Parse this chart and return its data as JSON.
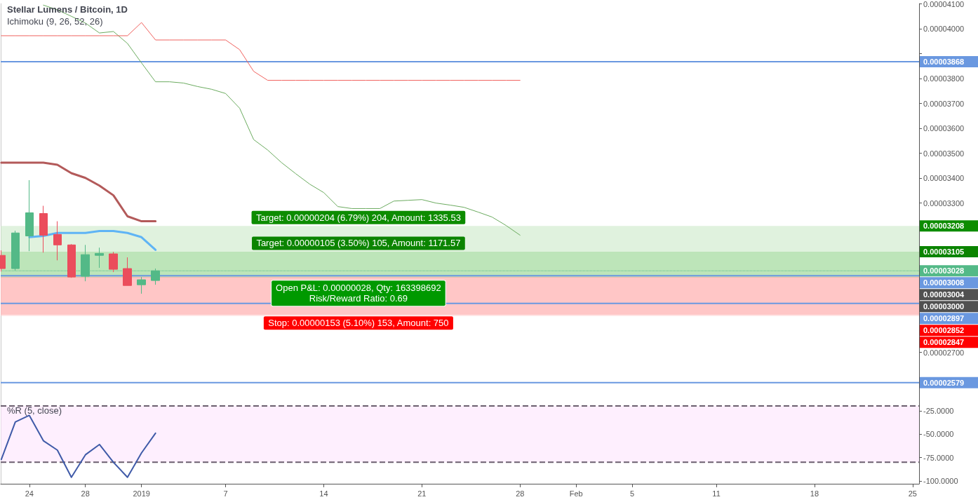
{
  "chart_data": [
    {
      "type": "candlestick",
      "title": "Stellar Lumens / Bitcoin, 1D",
      "subtitle": "Ichimoku (9, 26, 52, 26)",
      "xlim": [
        "2018-12-21T23:00",
        "2019-02-25T11:00"
      ],
      "ylim": [
        2.505e-05,
        4.101e-05
      ],
      "yticks": [
        {
          "value": 2.6e-05,
          "label": null
        },
        {
          "value": 2.7e-05,
          "label": "0.00002700"
        },
        {
          "value": 2.8e-05,
          "label": null
        },
        {
          "value": 2.9e-05,
          "label": null
        },
        {
          "value": 3e-05,
          "label": null
        },
        {
          "value": 3.1e-05,
          "label": null
        },
        {
          "value": 3.2e-05,
          "label": null
        },
        {
          "value": 3.3e-05,
          "label": "0.00003300"
        },
        {
          "value": 3.4e-05,
          "label": "0.00003400"
        },
        {
          "value": 3.5e-05,
          "label": "0.00003500"
        },
        {
          "value": 3.6e-05,
          "label": "0.00003600"
        },
        {
          "value": 3.7e-05,
          "label": "0.00003700"
        },
        {
          "value": 3.8e-05,
          "label": "0.00003800"
        },
        {
          "value": 3.9e-05,
          "label": null
        },
        {
          "value": 4e-05,
          "label": "0.00004000"
        },
        {
          "value": 4.1e-05,
          "label": "0.00004100"
        }
      ],
      "tick_labels": "y",
      "marker": "none",
      "series": [
        {
          "x": [
            "2018-12-22",
            "2018-12-23",
            "2018-12-24",
            "2018-12-25",
            "2018-12-26",
            "2018-12-27",
            "2018-12-28",
            "2018-12-29",
            "2018-12-30",
            "2018-12-31",
            "2019-01-01",
            "2019-01-02"
          ],
          "ohlc": [
            [
              3.09e-05,
              3.11e-05,
              3.025e-05,
              3.037e-05
            ],
            [
              3.037e-05,
              3.189e-05,
              3.028e-05,
              3.18e-05
            ],
            [
              3.168e-05,
              3.392e-05,
              3.107e-05,
              3.261e-05
            ],
            [
              3.258e-05,
              3.289e-05,
              3.101e-05,
              3.171e-05
            ],
            [
              3.174e-05,
              3.227e-05,
              3.07e-05,
              3.132e-05
            ],
            [
              3.132e-05,
              3.135e-05,
              3e-05,
              3.003e-05
            ],
            [
              3.006e-05,
              3.132e-05,
              2.986e-05,
              3.093e-05
            ],
            [
              3.09e-05,
              3.121e-05,
              3.04e-05,
              3.098e-05
            ],
            [
              3.096e-05,
              3.104e-05,
              3.023e-05,
              3.034e-05
            ],
            [
              3.037e-05,
              3.082e-05,
              2.969e-05,
              2.969e-05
            ],
            [
              2.972e-05,
              3.003e-05,
              2.936e-05,
              2.992e-05
            ],
            [
              2.989e-05,
              3.037e-05,
              2.972e-05,
              3.028e-05
            ]
          ],
          "colors": [
            "#eb4d5c",
            "#53b987",
            "#53b987",
            "#eb4d5c",
            "#eb4d5c",
            "#eb4d5c",
            "#53b987",
            "#53b987",
            "#eb4d5c",
            "#eb4d5c",
            "#53b987",
            "#53b987"
          ]
        },
        {
          "type": "line",
          "color": "#b35a5a",
          "x": [
            "2018-12-22",
            "2018-12-23",
            "2018-12-24",
            "2018-12-25",
            "2018-12-26",
            "2018-12-27",
            "2018-12-28",
            "2018-12-29",
            "2018-12-30",
            "2018-12-31",
            "2019-01-01",
            "2019-01-02"
          ],
          "values": [
            3.462e-05,
            3.462e-05,
            3.462e-05,
            3.462e-05,
            3.454e-05,
            3.42e-05,
            3.401e-05,
            3.37e-05,
            3.331e-05,
            3.247e-05,
            3.227e-05,
            3.227e-05
          ]
        },
        {
          "type": "line",
          "color": "#5fb4f5",
          "x": [
            "2018-12-24",
            "2018-12-25",
            "2018-12-26",
            "2018-12-27",
            "2018-12-28",
            "2018-12-29",
            "2018-12-30",
            "2018-12-31",
            "2019-01-01",
            "2019-01-02"
          ],
          "values": [
            3.163e-05,
            3.168e-05,
            3.18e-05,
            3.18e-05,
            3.18e-05,
            3.188e-05,
            3.188e-05,
            3.18e-05,
            3.163e-05,
            3.112e-05
          ]
        },
        {
          "type": "line",
          "color": "#6bab5f",
          "x": [
            "2018-12-25",
            "2018-12-26",
            "2018-12-27",
            "2018-12-28",
            "2018-12-29",
            "2018-12-30",
            "2018-12-31",
            "2019-01-01",
            "2019-01-02",
            "2019-01-03",
            "2019-01-04",
            "2019-01-05",
            "2019-01-06",
            "2019-01-07",
            "2019-01-08",
            "2019-01-09",
            "2019-01-10",
            "2019-01-11",
            "2019-01-12",
            "2019-01-13",
            "2019-01-14",
            "2019-01-15",
            "2019-01-16",
            "2019-01-17",
            "2019-01-18",
            "2019-01-19",
            "2019-01-20",
            "2019-01-21",
            "2019-01-22",
            "2019-01-23",
            "2019-01-24",
            "2019-01-25",
            "2019-01-26",
            "2019-01-27",
            "2019-01-28"
          ],
          "values": [
            4.095e-05,
            4.076e-05,
            4.05e-05,
            4.023e-05,
            3.983e-05,
            3.989e-05,
            3.941e-05,
            3.863e-05,
            3.787e-05,
            3.787e-05,
            3.782e-05,
            3.768e-05,
            3.757e-05,
            3.74e-05,
            3.681e-05,
            3.555e-05,
            3.513e-05,
            3.462e-05,
            3.418e-05,
            3.376e-05,
            3.342e-05,
            3.286e-05,
            3.278e-05,
            3.278e-05,
            3.278e-05,
            3.308e-05,
            3.311e-05,
            3.314e-05,
            3.3e-05,
            3.292e-05,
            3.283e-05,
            3.264e-05,
            3.244e-05,
            3.21e-05,
            3.171e-05
          ]
        },
        {
          "type": "line",
          "color": "#f0625e",
          "x": [
            "2018-12-22",
            "2018-12-23",
            "2018-12-24",
            "2018-12-25",
            "2018-12-26",
            "2018-12-27",
            "2018-12-28",
            "2018-12-29",
            "2018-12-30",
            "2018-12-31",
            "2019-01-01",
            "2019-01-02",
            "2019-01-03",
            "2019-01-04",
            "2019-01-05",
            "2019-01-06",
            "2019-01-07",
            "2019-01-08",
            "2019-01-09",
            "2019-01-10",
            "2019-01-11",
            "2019-01-12",
            "2019-01-13",
            "2019-01-14",
            "2019-01-15",
            "2019-01-16",
            "2019-01-17",
            "2019-01-18",
            "2019-01-19",
            "2019-01-20",
            "2019-01-21",
            "2019-01-22",
            "2019-01-23",
            "2019-01-24",
            "2019-01-25",
            "2019-01-26",
            "2019-01-27",
            "2019-01-28"
          ],
          "values": [
            3.972e-05,
            3.972e-05,
            3.972e-05,
            3.972e-05,
            3.972e-05,
            3.972e-05,
            3.972e-05,
            3.972e-05,
            3.972e-05,
            3.972e-05,
            4.025e-05,
            3.955e-05,
            3.955e-05,
            3.955e-05,
            3.955e-05,
            3.955e-05,
            3.955e-05,
            3.916e-05,
            3.829e-05,
            3.793e-05,
            3.793e-05,
            3.793e-05,
            3.793e-05,
            3.793e-05,
            3.793e-05,
            3.793e-05,
            3.793e-05,
            3.793e-05,
            3.793e-05,
            3.793e-05,
            3.793e-05,
            3.793e-05,
            3.793e-05,
            3.793e-05,
            3.793e-05,
            3.793e-05,
            3.793e-05,
            3.793e-05
          ]
        }
      ],
      "ref_lines": [
        {
          "axis": "y",
          "value": 3.868e-05,
          "label": "0.00003868",
          "color": "#6a98e0"
        },
        {
          "axis": "y",
          "value": 3.028e-05,
          "label": "0.00003028",
          "color": "#53b987",
          "line_style": "dotted"
        },
        {
          "axis": "y",
          "value": 3.008e-05,
          "label": "0.00003008",
          "color": "#6a98e0"
        },
        {
          "axis": "y",
          "value": 2.897e-05,
          "label": "0.00002897",
          "color": "#6a98e0"
        },
        {
          "axis": "y",
          "value": 2.579e-05,
          "label": "0.00002579",
          "color": "#6a98e0"
        }
      ],
      "bands": [
        {
          "axis": "y",
          "from": 3.004e-05,
          "to": 3.208e-05,
          "label": "Target: 0.00000204 (6.79%) 204, Amount: 1335.53",
          "color": "#cbe9c8"
        },
        {
          "axis": "y",
          "from": 3e-05,
          "to": 3.105e-05,
          "label": "Target: 0.00000105 (3.50%) 105, Amount: 1171.57",
          "color": "#a5dca0"
        },
        {
          "axis": "y",
          "from": 2.852e-05,
          "to": 3.004e-05,
          "label": "Stop: 0.00000153 (5.10%) 153, Amount: 750",
          "color": "#ff9d9d"
        },
        {
          "axis": "y",
          "from": 2.847e-05,
          "to": 3e-05,
          "color": "#ffc8c8"
        }
      ],
      "annotations": [
        "Open P&L: 0.00000028, Qty: 163398692\nRisk/Reward Ratio: 0.69",
        "0.00003208",
        "0.00003105",
        "0.00003004",
        "0.00003000",
        "0.00002852",
        "0.00002847"
      ]
    },
    {
      "type": "line",
      "title": "%R (5, close)",
      "xlim": [
        "2018-12-21T23:00",
        "2019-02-25T11:00"
      ],
      "ylim": [
        -102.9,
        -14.7
      ],
      "xticks": [
        {
          "value": "2018-12-24",
          "label": "24"
        },
        {
          "value": "2018-12-28",
          "label": "28"
        },
        {
          "value": "2019-01-01",
          "label": "2019"
        },
        {
          "value": "2019-01-07",
          "label": "7"
        },
        {
          "value": "2019-01-14",
          "label": "14"
        },
        {
          "value": "2019-01-21",
          "label": "21"
        },
        {
          "value": "2019-01-28",
          "label": "28"
        },
        {
          "value": "2019-02-01",
          "label": "Feb"
        },
        {
          "value": "2019-02-05",
          "label": "5"
        },
        {
          "value": "2019-02-11",
          "label": "11"
        },
        {
          "value": "2019-02-18",
          "label": "18"
        },
        {
          "value": "2019-02-25",
          "label": "25"
        }
      ],
      "yticks": [
        {
          "value": -25,
          "label": "-25.0000"
        },
        {
          "value": -50,
          "label": "-50.0000"
        },
        {
          "value": -75,
          "label": "-75.0000"
        },
        {
          "value": -100,
          "label": "-100.0000"
        }
      ],
      "marker": "none",
      "series": [
        {
          "color": "#3f5aa8",
          "x": [
            "2018-12-22",
            "2018-12-23",
            "2018-12-24",
            "2018-12-25",
            "2018-12-26",
            "2018-12-27",
            "2018-12-28",
            "2018-12-29",
            "2018-12-30",
            "2018-12-31",
            "2019-01-01",
            "2019-01-02"
          ],
          "values": [
            -77,
            -37,
            -30,
            -57,
            -67,
            -96,
            -72,
            -61,
            -80,
            -96,
            -70,
            -49
          ]
        }
      ],
      "bands": [
        {
          "axis": "y",
          "from": -80,
          "to": -20,
          "color": "#fde4fd"
        }
      ],
      "ref_lines": [
        {
          "axis": "y",
          "value": -20,
          "color": "#6b5f6e",
          "line_style": "dashed"
        },
        {
          "axis": "y",
          "value": -80,
          "color": "#6b5f6e",
          "line_style": "dashed"
        }
      ]
    }
  ]
}
